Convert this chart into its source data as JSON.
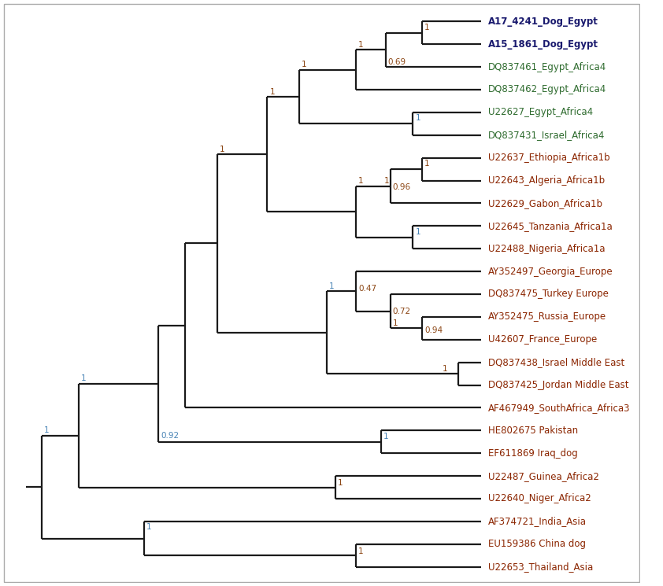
{
  "taxa": [
    "A17_4241_Dog_Egypt",
    "A15_1861_Dog_Egypt",
    "DQ837461_Egypt_Africa4",
    "DQ837462_Egypt_Africa4",
    "U22627_Egypt_Africa4",
    "DQ837431_Israel_Africa4",
    "U22637_Ethiopia_Africa1b",
    "U22643_Algeria_Africa1b",
    "U22629_Gabon_Africa1b",
    "U22645_Tanzania_Africa1a",
    "U22488_Nigeria_Africa1a",
    "AY352497_Georgia_Europe",
    "DQ837475_Turkey Europe",
    "AY352475_Russia_Europe",
    "U42607_France_Europe",
    "DQ837438_Israel Middle East",
    "DQ837425_Jordan Middle East",
    "AF467949_SouthAfrica_Africa3",
    "HE802675 Pakistan",
    "EF611869 Iraq_dog",
    "U22487_Guinea_Africa2",
    "U22640_Niger_Africa2",
    "AF374721_India_Asia",
    "EU159386 China dog",
    "U22653_Thailand_Asia"
  ],
  "bold_taxa": [
    "A17_4241_Dog_Egypt",
    "A15_1861_Dog_Egypt"
  ],
  "taxa_colors": {
    "A17_4241_Dog_Egypt": "#1a1a6e",
    "A15_1861_Dog_Egypt": "#1a1a6e",
    "DQ837461_Egypt_Africa4": "#2e6b2e",
    "DQ837462_Egypt_Africa4": "#2e6b2e",
    "U22627_Egypt_Africa4": "#2e6b2e",
    "DQ837431_Israel_Africa4": "#2e6b2e",
    "U22637_Ethiopia_Africa1b": "#8B2500",
    "U22643_Algeria_Africa1b": "#8B2500",
    "U22629_Gabon_Africa1b": "#8B2500",
    "U22645_Tanzania_Africa1a": "#8B2500",
    "U22488_Nigeria_Africa1a": "#8B2500",
    "AY352497_Georgia_Europe": "#8B2500",
    "DQ837475_Turkey Europe": "#8B2500",
    "AY352475_Russia_Europe": "#8B2500",
    "U42607_France_Europe": "#8B2500",
    "DQ837438_Israel Middle East": "#8B2500",
    "DQ837425_Jordan Middle East": "#8B2500",
    "AF467949_SouthAfrica_Africa3": "#8B2500",
    "HE802675 Pakistan": "#8B2500",
    "EF611869 Iraq_dog": "#8B2500",
    "U22487_Guinea_Africa2": "#8B2500",
    "U22640_Niger_Africa2": "#8B2500",
    "AF374721_India_Asia": "#8B2500",
    "EU159386 China dog": "#8B2500",
    "U22653_Thailand_Asia": "#8B2500"
  },
  "line_color": "#1a1a1a",
  "bg_color": "#ffffff",
  "border_color": "#aaaaaa",
  "support_blue": "#4682B4",
  "support_brown": "#8B4513",
  "tip_x": 10.0,
  "xlim": [
    -0.5,
    13.5
  ],
  "ylim": [
    0.3,
    25.8
  ],
  "label_fontsize": 8.5,
  "support_fontsize": 7.5,
  "lw": 1.6,
  "nodes": {
    "nA_x": 8.7,
    "nB_x": 7.9,
    "nC_x": 7.25,
    "nD_x": 8.5,
    "nE_x": 6.0,
    "nF_x": 8.7,
    "nG_x": 8.0,
    "nH_x": 8.5,
    "nI_x": 7.25,
    "nJ_x": 5.3,
    "nL_x": 8.7,
    "nM_x": 8.0,
    "nN_x": 7.25,
    "nO_x": 9.5,
    "nP_x": 6.6,
    "nQ_x": 4.2,
    "nR_x": 3.5,
    "nS_x": 7.8,
    "nT_x": 2.9,
    "nU_x": 6.8,
    "nV_x": 1.15,
    "nW_x": 7.25,
    "nX_x": 2.6,
    "root_x": 0.35
  }
}
